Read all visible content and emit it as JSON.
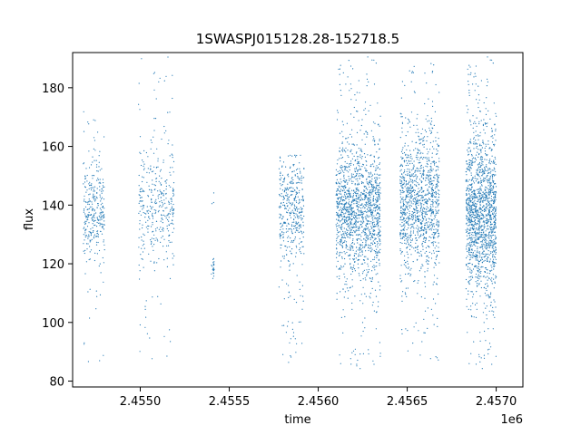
{
  "chart_data": {
    "type": "scatter",
    "title": "1SWASPJ015128.28-152718.5",
    "xlabel": "time",
    "ylabel": "flux",
    "x_offset_label": "1e6",
    "x_tick_labels": [
      "2.4550",
      "2.4555",
      "2.4560",
      "2.4565",
      "2.4570"
    ],
    "x_ticks": [
      2455000,
      2455500,
      2456000,
      2456500,
      2457000
    ],
    "y_ticks": [
      80,
      100,
      120,
      140,
      160,
      180
    ],
    "xlim": [
      2454620,
      2457150
    ],
    "ylim": [
      78,
      192
    ],
    "grid": false,
    "marker_color": "#1f77b4",
    "segments": [
      {
        "x_start": 2454680,
        "x_end": 2454800,
        "y_center": 138,
        "y_spread": 8,
        "y_min": 86,
        "y_max": 172,
        "density": 320
      },
      {
        "x_start": 2454990,
        "x_end": 2455190,
        "y_center": 140,
        "y_spread": 10,
        "y_min": 87,
        "y_max": 191,
        "density": 380
      },
      {
        "x_start": 2455400,
        "x_end": 2455415,
        "y_center": 118,
        "y_spread": 2,
        "y_min": 115,
        "y_max": 145,
        "density": 25
      },
      {
        "x_start": 2455780,
        "x_end": 2455920,
        "y_center": 138,
        "y_spread": 9,
        "y_min": 86,
        "y_max": 157,
        "density": 420
      },
      {
        "x_start": 2456100,
        "x_end": 2456350,
        "y_center": 138,
        "y_spread": 11,
        "y_min": 84,
        "y_max": 191,
        "density": 1500
      },
      {
        "x_start": 2456460,
        "x_end": 2456680,
        "y_center": 140,
        "y_spread": 11,
        "y_min": 85,
        "y_max": 189,
        "density": 1200
      },
      {
        "x_start": 2456830,
        "x_end": 2457000,
        "y_center": 137,
        "y_spread": 13,
        "y_min": 84,
        "y_max": 191,
        "density": 1500
      }
    ]
  }
}
